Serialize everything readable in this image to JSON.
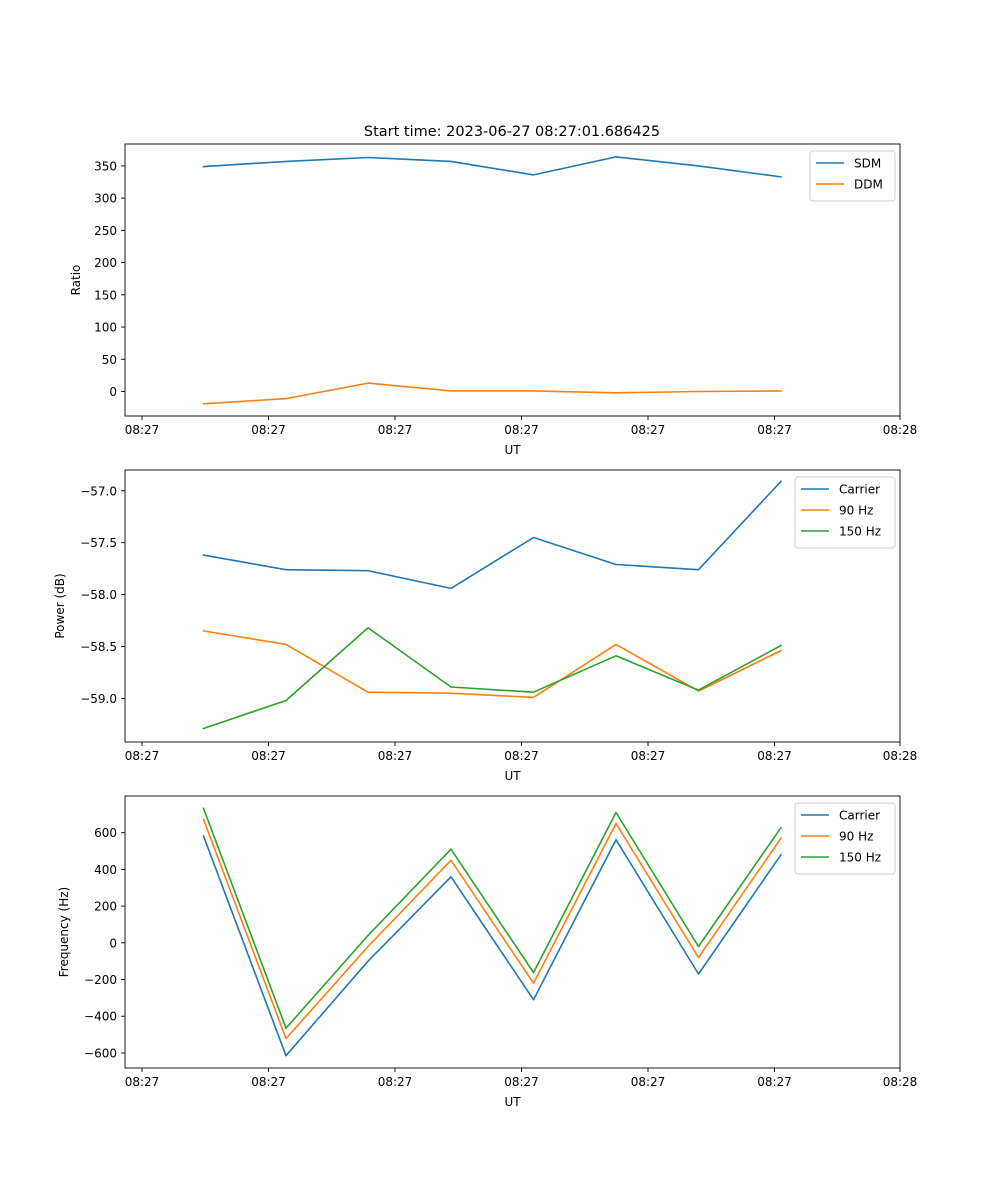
{
  "figure": {
    "title": "Start time: 2023-06-27 08:27:01.686425"
  },
  "colors": {
    "blue": "#1f77b4",
    "orange": "#ff7f0e",
    "green": "#2ca02c"
  },
  "chart_data": [
    {
      "type": "line",
      "title": "Start time: 2023-06-27 08:27:01.686425",
      "xlabel": "UT",
      "ylabel": "Ratio",
      "x_tick_labels": [
        "08:27",
        "08:27",
        "08:27",
        "08:27",
        "08:27",
        "08:27",
        "08:28"
      ],
      "yticks": [
        0,
        50,
        100,
        150,
        200,
        250,
        300,
        350
      ],
      "ylim": [
        -38,
        384
      ],
      "grid": false,
      "legend": "top-right",
      "series": [
        {
          "name": "SDM",
          "color": "#1f77b4",
          "values": [
            349,
            357,
            363,
            357,
            336,
            364,
            350,
            333
          ]
        },
        {
          "name": "DDM",
          "color": "#ff7f0e",
          "values": [
            -19,
            -11,
            13,
            1,
            1,
            -2,
            0,
            1
          ]
        }
      ]
    },
    {
      "type": "line",
      "title": "",
      "xlabel": "UT",
      "ylabel": "Power (dB)",
      "x_tick_labels": [
        "08:27",
        "08:27",
        "08:27",
        "08:27",
        "08:27",
        "08:27",
        "08:28"
      ],
      "yticks": [
        -59.0,
        -58.5,
        -58.0,
        -57.5,
        -57.0
      ],
      "ytick_labels": [
        "−59.0",
        "−58.5",
        "−58.0",
        "−57.5",
        "−57.0"
      ],
      "ylim": [
        -59.42,
        -56.8
      ],
      "grid": false,
      "legend": "top-right",
      "series": [
        {
          "name": "Carrier",
          "color": "#1f77b4",
          "values": [
            -57.62,
            -57.76,
            -57.77,
            -57.94,
            -57.45,
            -57.71,
            -57.76,
            -56.91
          ]
        },
        {
          "name": "90 Hz",
          "color": "#ff7f0e",
          "values": [
            -58.35,
            -58.48,
            -58.94,
            -58.95,
            -58.99,
            -58.48,
            -58.93,
            -58.54
          ]
        },
        {
          "name": "150 Hz",
          "color": "#2ca02c",
          "values": [
            -59.29,
            -59.02,
            -58.32,
            -58.89,
            -58.94,
            -58.59,
            -58.92,
            -58.49
          ]
        }
      ]
    },
    {
      "type": "line",
      "title": "",
      "xlabel": "UT",
      "ylabel": "Frequency (Hz)",
      "x_tick_labels": [
        "08:27",
        "08:27",
        "08:27",
        "08:27",
        "08:27",
        "08:27",
        "08:28"
      ],
      "yticks": [
        -600,
        -400,
        -200,
        0,
        200,
        400,
        600
      ],
      "ytick_labels": [
        "−600",
        "−400",
        "−200",
        "0",
        "200",
        "400",
        "600"
      ],
      "ylim": [
        -682,
        800
      ],
      "grid": false,
      "legend": "top-right",
      "series": [
        {
          "name": "Carrier",
          "color": "#1f77b4",
          "values": [
            582,
            -615,
            -100,
            360,
            -310,
            562,
            -170,
            480
          ]
        },
        {
          "name": "90 Hz",
          "color": "#ff7f0e",
          "values": [
            673,
            -522,
            -20,
            450,
            -220,
            650,
            -80,
            570
          ]
        },
        {
          "name": "150 Hz",
          "color": "#2ca02c",
          "values": [
            733,
            -465,
            40,
            510,
            -162,
            710,
            -20,
            628
          ]
        }
      ]
    }
  ]
}
